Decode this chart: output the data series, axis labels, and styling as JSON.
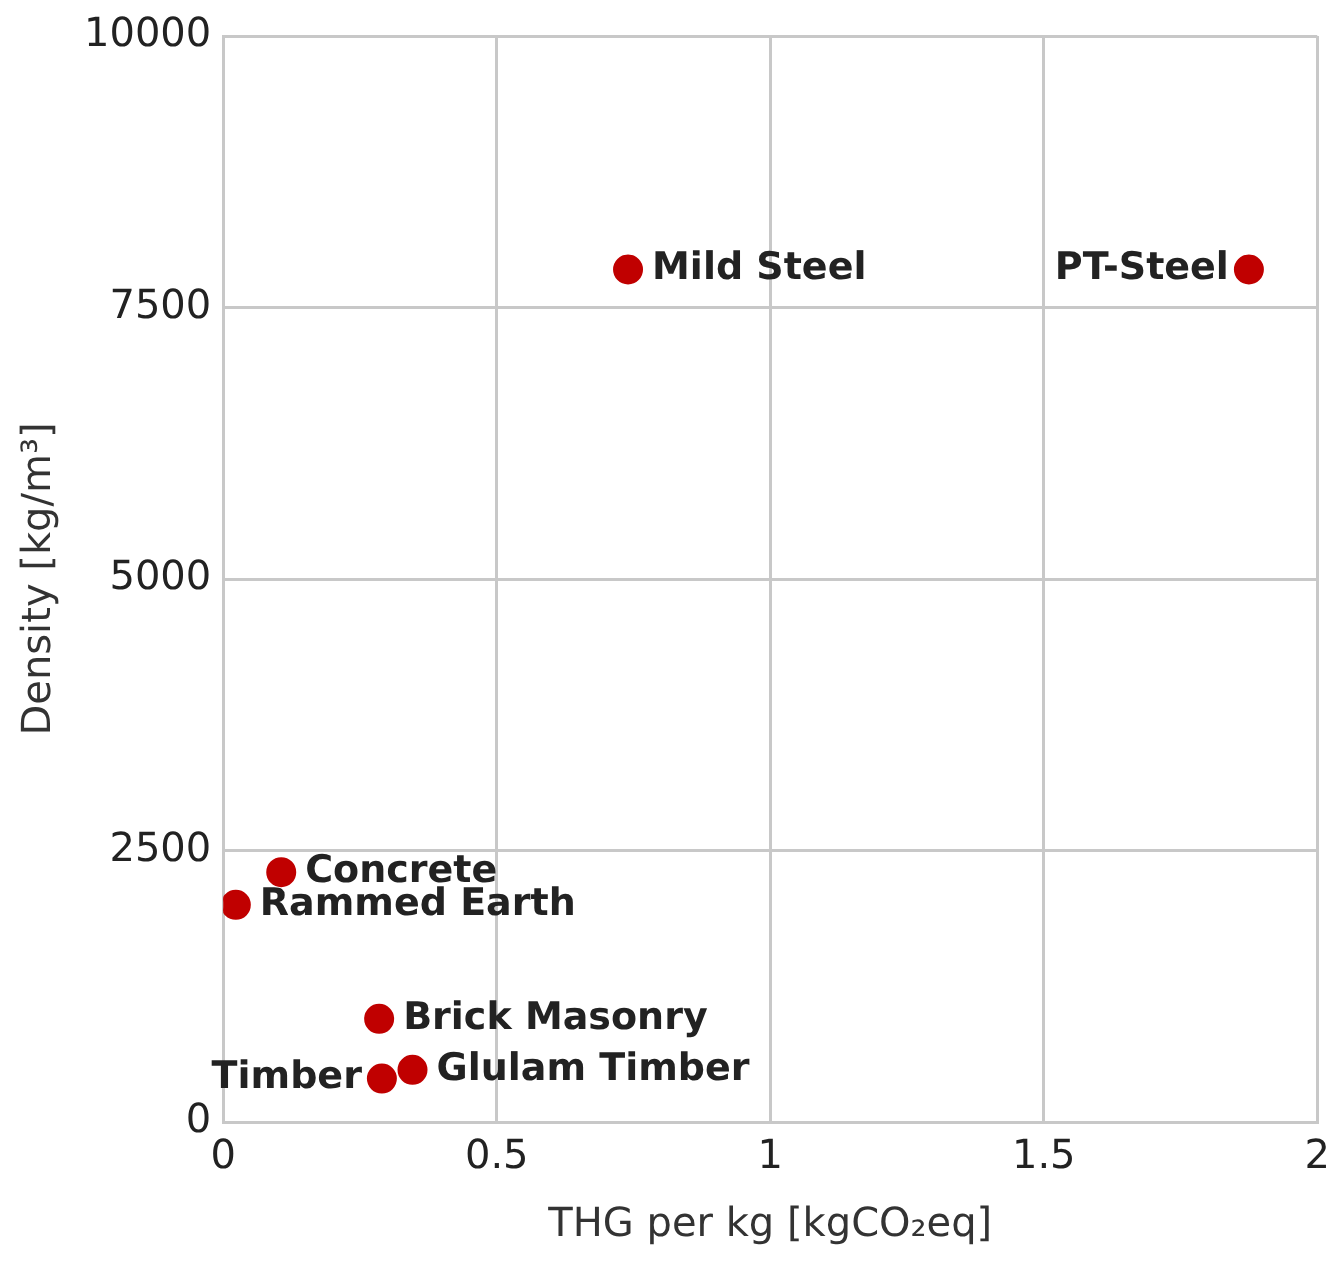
{
  "chart_data": {
    "type": "scatter",
    "xlabel": "THG per kg [kgCO₂eq]",
    "ylabel": "Density [kg/m³]",
    "x": [
      0.74,
      1.875,
      0.106,
      0.023,
      0.285,
      0.346,
      0.29
    ],
    "values": [
      7850,
      7850,
      2300,
      2000,
      950,
      480,
      400
    ],
    "color": "#c00000",
    "marker": "circle",
    "xlim": [
      0,
      2
    ],
    "xticks": [
      0,
      0.5,
      1,
      1.5,
      2
    ],
    "ylim": [
      0,
      10000
    ],
    "yticks": [
      0,
      2500,
      5000,
      7500,
      10000
    ],
    "grid": true,
    "annotations": [
      {
        "text": "Mild Steel",
        "x": 0.74,
        "y": 7850
      },
      {
        "text": "PT-Steel",
        "x": 1.875,
        "y": 7850
      },
      {
        "text": "Concrete",
        "x": 0.106,
        "y": 2300
      },
      {
        "text": "Rammed Earth",
        "x": 0.023,
        "y": 2000
      },
      {
        "text": "Brick Masonry",
        "x": 0.285,
        "y": 950
      },
      {
        "text": "Glulam Timber",
        "x": 0.346,
        "y": 480
      },
      {
        "text": "Timber",
        "x": 0.29,
        "y": 400
      }
    ]
  }
}
